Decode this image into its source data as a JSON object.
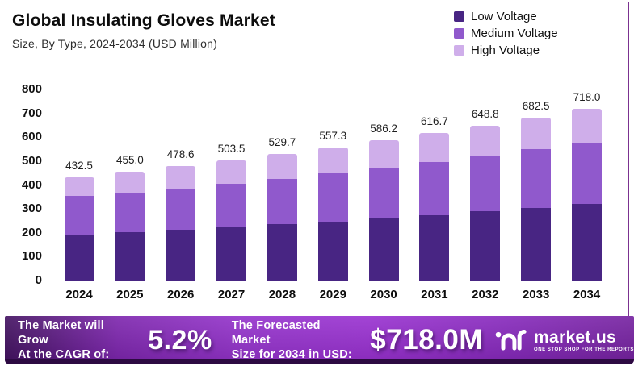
{
  "header": {
    "title": "Global Insulating Gloves Market",
    "subtitle": "Size, By Type, 2024-2034 (USD Million)"
  },
  "chart_data": {
    "type": "bar",
    "stacked": true,
    "title": "Global Insulating Gloves Market",
    "subtitle": "Size, By Type, 2024-2034 (USD Million)",
    "xlabel": "",
    "ylabel": "USD Million",
    "ylim": [
      0,
      800
    ],
    "yticks": [
      0,
      100,
      200,
      300,
      400,
      500,
      600,
      700,
      800
    ],
    "grid": false,
    "legend_position": "top-right",
    "categories": [
      "2024",
      "2025",
      "2026",
      "2027",
      "2028",
      "2029",
      "2030",
      "2031",
      "2032",
      "2033",
      "2034"
    ],
    "totals": [
      432.5,
      455.0,
      478.6,
      503.5,
      529.7,
      557.3,
      586.2,
      616.7,
      648.8,
      682.5,
      718.0
    ],
    "total_labels": [
      "432.5",
      "455.0",
      "478.6",
      "503.5",
      "529.7",
      "557.3",
      "586.2",
      "616.7",
      "648.8",
      "682.5",
      "718.0"
    ],
    "series": [
      {
        "name": "Low Voltage",
        "color": "#482583",
        "values": [
          192.5,
          202.5,
          213.0,
          224.1,
          235.7,
          248.0,
          260.9,
          274.4,
          288.7,
          303.7,
          319.5
        ]
      },
      {
        "name": "Medium Voltage",
        "color": "#9059cc",
        "values": [
          161.3,
          163.7,
          172.3,
          181.2,
          190.0,
          199.6,
          211.0,
          222.0,
          233.5,
          245.7,
          258.3
        ]
      },
      {
        "name": "High Voltage",
        "color": "#cfaeea",
        "values": [
          78.7,
          88.8,
          93.3,
          98.2,
          104.0,
          109.7,
          114.3,
          120.3,
          126.6,
          133.1,
          140.2
        ]
      }
    ]
  },
  "banner": {
    "cagr_line1": "The Market will Grow",
    "cagr_line2": "At the CAGR of:",
    "cagr_value": "5.2%",
    "forecast_line1": "The Forecasted Market",
    "forecast_line2": "Size for 2034 in USD:",
    "forecast_value": "$718.0M",
    "brand_name": "market.us",
    "brand_tagline": "ONE STOP SHOP FOR THE REPORTS"
  },
  "colors": {
    "low_voltage": "#482583",
    "medium_voltage": "#9059cc",
    "high_voltage": "#cfaeea",
    "card_border": "#7b3190",
    "banner_gradient_start": "#41105f",
    "banner_gradient_bright": "#982fd0",
    "banner_gradient_end": "#74209f",
    "banner_bottom_strip": "#2d0a42",
    "axis_line": "#dcdcdc",
    "text_primary": "#0d0d0d"
  }
}
